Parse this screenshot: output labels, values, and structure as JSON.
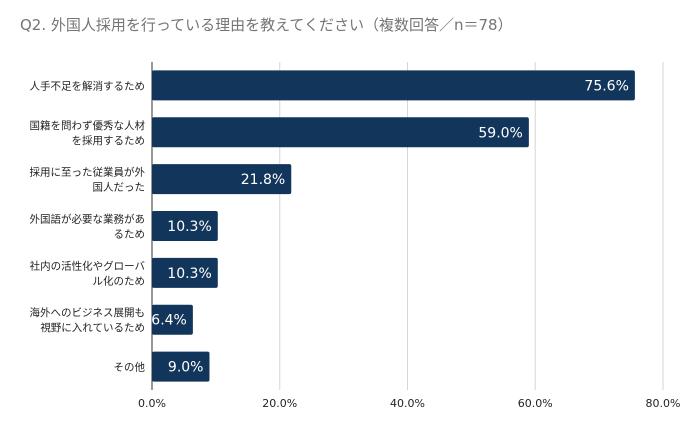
{
  "chart_data": {
    "type": "bar",
    "orientation": "horizontal",
    "title": "Q2. 外国人採用を行っている理由を教えてください（複数回答／n＝78）",
    "categories": [
      [
        "人手不足を解消するため"
      ],
      [
        "国籍を問わず優秀な人材",
        "を採用するため"
      ],
      [
        "採用に至った従業員が外",
        "国人だった"
      ],
      [
        "外国語が必要な業務があ",
        "るため"
      ],
      [
        "社内の活性化やグローバ",
        "ル化のため"
      ],
      [
        "海外へのビジネス展開も",
        "視野に入れているため"
      ],
      [
        "その他"
      ]
    ],
    "values": [
      75.6,
      59.0,
      21.8,
      10.3,
      10.3,
      6.4,
      9.0
    ],
    "value_labels": [
      "75.6%",
      "59.0%",
      "21.8%",
      "10.3%",
      "10.3%",
      "6.4%",
      "9.0%"
    ],
    "xlim": [
      0,
      80
    ],
    "ticks": [
      0,
      20,
      40,
      60,
      80
    ],
    "tick_labels": [
      "0.0%",
      "20.0%",
      "40.0%",
      "60.0%",
      "80.0%"
    ],
    "grid": true,
    "bar_color": "#12355b",
    "label_color": "#ffffff"
  }
}
